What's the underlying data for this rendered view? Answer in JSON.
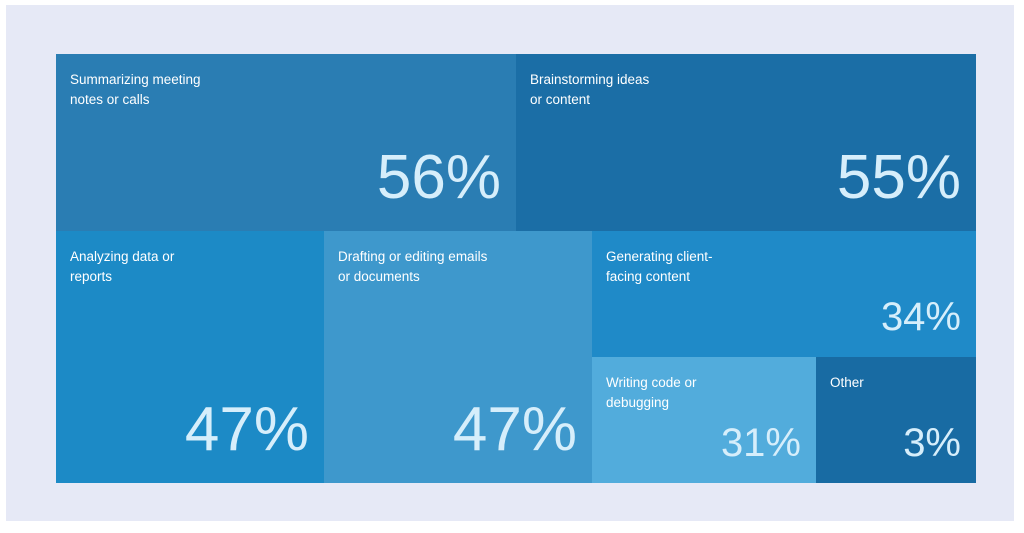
{
  "chart_data": {
    "type": "treemap",
    "items": [
      {
        "label": "Summarizing meeting\nnotes or calls",
        "value_label": "56%",
        "value": 56,
        "color": "#2a7db3"
      },
      {
        "label": "Brainstorming ideas\nor content",
        "value_label": "55%",
        "value": 55,
        "color": "#1b6ea6"
      },
      {
        "label": "Analyzing data or\nreports",
        "value_label": "47%",
        "value": 47,
        "color": "#1c8ac6"
      },
      {
        "label": "Drafting or editing emails\nor documents",
        "value_label": "47%",
        "value": 47,
        "color": "#3e98cc"
      },
      {
        "label": "Generating client-\nfacing content",
        "value_label": "34%",
        "value": 34,
        "color": "#1f8ac8"
      },
      {
        "label": "Writing code or\ndebugging",
        "value_label": "31%",
        "value": 31,
        "color": "#52acdc"
      },
      {
        "label": "Other",
        "value_label": "3%",
        "value": 3,
        "color": "#186ba3"
      }
    ]
  }
}
